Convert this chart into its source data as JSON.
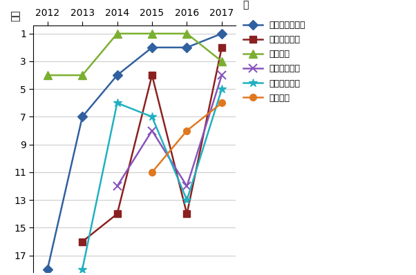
{
  "title": "",
  "xlabel": "年",
  "ylabel": "順位",
  "series": [
    {
      "name": "名古屋市立大学",
      "years": [
        2012,
        2013,
        2014,
        2015,
        2016,
        2017
      ],
      "values": [
        18,
        7,
        4,
        2,
        2,
        1
      ],
      "color": "#3060A0",
      "marker": "D",
      "markersize": 7
    },
    {
      "name": "東京工科大学",
      "years": [
        2013,
        2014,
        2015,
        2016,
        2017
      ],
      "values": [
        16,
        14,
        4,
        14,
        2
      ],
      "color": "#8B2020",
      "marker": "s",
      "markersize": 7
    },
    {
      "name": "富山大学",
      "years": [
        2012,
        2013,
        2014,
        2015,
        2016,
        2017
      ],
      "values": [
        4,
        4,
        1,
        1,
        1,
        3
      ],
      "color": "#7AAF30",
      "marker": "^",
      "markersize": 8
    },
    {
      "name": "北海学園大学",
      "years": [
        2014,
        2015,
        2016,
        2017
      ],
      "values": [
        12,
        8,
        12,
        4
      ],
      "color": "#8855BB",
      "marker": "x",
      "markersize": 8
    },
    {
      "name": "静岡県立大学",
      "years": [
        2013,
        2014,
        2015,
        2016,
        2017
      ],
      "values": [
        18,
        6,
        7,
        13,
        5
      ],
      "color": "#20B0C0",
      "marker": "*",
      "markersize": 9
    },
    {
      "name": "崇城大学",
      "years": [
        2015,
        2016,
        2017
      ],
      "values": [
        11,
        8,
        6
      ],
      "color": "#E07820",
      "marker": "o",
      "markersize": 7
    }
  ],
  "xlim": [
    2011.6,
    2017.4
  ],
  "ylim": [
    18.2,
    0.4
  ],
  "yticks": [
    1,
    3,
    5,
    7,
    9,
    11,
    13,
    15,
    17
  ],
  "xticks": [
    2012,
    2013,
    2014,
    2015,
    2016,
    2017
  ],
  "grid_color": "#CCCCCC",
  "bg_color": "#FFFFFF",
  "linewidth": 1.8
}
